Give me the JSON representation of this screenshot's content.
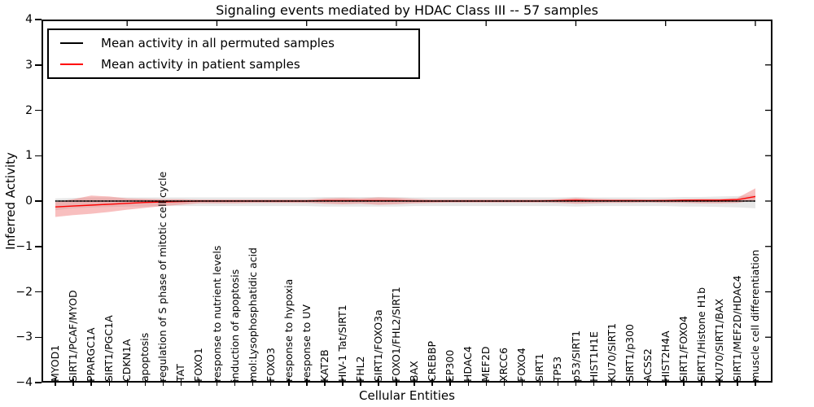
{
  "chart_data": {
    "type": "line",
    "title": "Signaling events mediated by HDAC Class III -- 57 samples",
    "xlabel": "Cellular Entities",
    "ylabel": "Inferred Activity",
    "ylim": [
      -4,
      4
    ],
    "yticks": [
      4,
      3,
      2,
      1,
      0,
      -1,
      -2,
      -3,
      -4
    ],
    "grid": false,
    "legend_position": "upper left",
    "top_tick_every": 5,
    "categories": [
      "MYOD1",
      "SIRT1/PCAF/MYOD",
      "PPARGC1A",
      "SIRT1/PGC1A",
      "CDKN1A",
      "apoptosis",
      "regulation of S phase of mitotic cell cycle",
      "TAT",
      "FOXO1",
      "response to nutrient levels",
      "induction of apoptosis",
      "mol:Lysophosphatidic acid",
      "FOXO3",
      "response to hypoxia",
      "response to UV",
      "KAT2B",
      "HIV-1 Tat/SIRT1",
      "FHL2",
      "SIRT1/FOXO3a",
      "FOXO1/FHL2/SIRT1",
      "BAX",
      "CREBBP",
      "EP300",
      "HDAC4",
      "MEF2D",
      "XRCC6",
      "FOXO4",
      "SIRT1",
      "TP53",
      "p53/SIRT1",
      "HIST1H1E",
      "KU70/SIRT1",
      "SIRT1/p300",
      "ACSS2",
      "HIST2H4A",
      "SIRT1/FOXO4",
      "SIRT1/Histone H1b",
      "KU70/SIRT1/BAX",
      "SIRT1/MEF2D/HDAC4",
      "muscle cell differentiation"
    ],
    "series": [
      {
        "id": "permuted",
        "name": "Mean activity in all permuted samples",
        "color": "#000000",
        "line_style": "solid-with-dots",
        "values": [
          0,
          0,
          0,
          0,
          0,
          0,
          0,
          0,
          0,
          0,
          0,
          0,
          0,
          0,
          0,
          0,
          0,
          0,
          0,
          0,
          0,
          0,
          0,
          0,
          0,
          0,
          0,
          0,
          0,
          0,
          0,
          0,
          0,
          0,
          0,
          0,
          0,
          0,
          0,
          0
        ],
        "band_upper": [
          0.06,
          0.07,
          0.08,
          0.08,
          0.08,
          0.08,
          0.08,
          0.08,
          0.08,
          0.08,
          0.08,
          0.08,
          0.08,
          0.08,
          0.08,
          0.09,
          0.09,
          0.09,
          0.09,
          0.09,
          0.08,
          0.08,
          0.08,
          0.08,
          0.08,
          0.08,
          0.08,
          0.08,
          0.08,
          0.09,
          0.08,
          0.08,
          0.08,
          0.08,
          0.08,
          0.09,
          0.09,
          0.1,
          0.11,
          0.13
        ],
        "band_lower": [
          -0.2,
          -0.16,
          -0.14,
          -0.13,
          -0.12,
          -0.12,
          -0.11,
          -0.11,
          -0.11,
          -0.11,
          -0.11,
          -0.11,
          -0.11,
          -0.11,
          -0.11,
          -0.12,
          -0.12,
          -0.12,
          -0.12,
          -0.12,
          -0.11,
          -0.11,
          -0.11,
          -0.11,
          -0.11,
          -0.11,
          -0.11,
          -0.11,
          -0.11,
          -0.12,
          -0.11,
          -0.11,
          -0.11,
          -0.11,
          -0.11,
          -0.12,
          -0.12,
          -0.13,
          -0.14,
          -0.16
        ],
        "band_color": "#bbbbbb",
        "band_opacity": 0.35
      },
      {
        "id": "patient",
        "name": "Mean activity in patient samples",
        "color": "#ff0000",
        "line_style": "solid",
        "values": [
          -0.13,
          -0.11,
          -0.09,
          -0.07,
          -0.05,
          -0.03,
          -0.02,
          -0.01,
          0,
          0,
          0,
          0,
          0,
          0,
          0,
          0.01,
          0.01,
          0.01,
          0.01,
          0.01,
          0,
          0,
          0,
          0,
          0,
          0,
          0,
          0,
          0.01,
          0.02,
          0.01,
          0.01,
          0.01,
          0.01,
          0.01,
          0.02,
          0.02,
          0.02,
          0.03,
          0.1
        ],
        "band_upper": [
          -0.02,
          0.04,
          0.12,
          0.1,
          0.06,
          0.05,
          0.04,
          0.04,
          0.03,
          0.03,
          0.03,
          0.03,
          0.03,
          0.03,
          0.03,
          0.06,
          0.07,
          0.06,
          0.08,
          0.07,
          0.05,
          0.03,
          0.03,
          0.03,
          0.03,
          0.03,
          0.03,
          0.03,
          0.04,
          0.07,
          0.05,
          0.04,
          0.04,
          0.03,
          0.04,
          0.04,
          0.05,
          0.05,
          0.07,
          0.28
        ],
        "band_lower": [
          -0.35,
          -0.31,
          -0.28,
          -0.24,
          -0.19,
          -0.15,
          -0.11,
          -0.08,
          -0.05,
          -0.05,
          -0.05,
          -0.04,
          -0.04,
          -0.04,
          -0.04,
          -0.06,
          -0.07,
          -0.06,
          -0.08,
          -0.07,
          -0.05,
          -0.04,
          -0.03,
          -0.03,
          -0.03,
          -0.03,
          -0.03,
          -0.03,
          -0.04,
          -0.06,
          -0.05,
          -0.04,
          -0.04,
          -0.03,
          -0.04,
          -0.04,
          -0.05,
          -0.05,
          -0.04,
          0.02
        ],
        "band_color": "#f07070",
        "band_opacity": 0.45
      }
    ],
    "styles": {
      "axis_color": "#000000",
      "background": "#ffffff"
    }
  }
}
